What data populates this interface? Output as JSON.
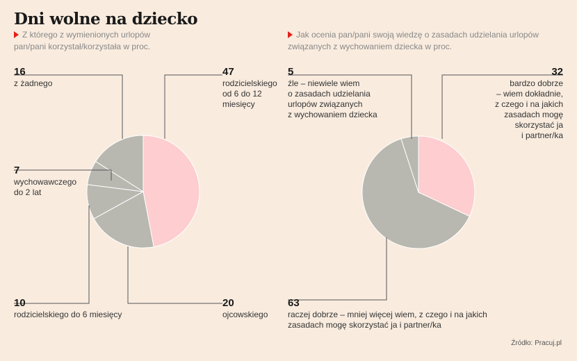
{
  "title": "Dni wolne na dziecko",
  "chart1": {
    "subtitle_l1": "Z którego z wymienionych urlopów",
    "subtitle_l2": "pan/pani korzystał/korzystała w proc.",
    "labels": [
      {
        "value": "16",
        "l1": "z żadnego"
      },
      {
        "value": "47",
        "l1": "rodzicielskiego",
        "l2": "od 6 do 12",
        "l3": "miesięcy"
      },
      {
        "value": "7",
        "l1": "wychowawczego",
        "l2": "do 2 lat"
      },
      {
        "value": "10",
        "l1": "rodzicielskiego do 6 miesięcy"
      },
      {
        "value": "20",
        "l1": "ojcowskiego"
      }
    ]
  },
  "chart2": {
    "subtitle_l1": "Jak ocenia pan/pani swoją wiedzę o zasadach udzielania urlopów",
    "subtitle_l2": "związanych z wychowaniem dziecka w proc.",
    "labels": [
      {
        "value": "5",
        "l1": "źle – niewiele wiem",
        "l2": "o zasadach udzielania",
        "l3": "urlopów związanych",
        "l4": "z wychowaniem dziecka"
      },
      {
        "value": "32",
        "l1": "bardzo dobrze",
        "l2": "– wiem dokładnie,",
        "l3": "z czego i na jakich",
        "l4": "zasadach mogę",
        "l5": "skorzystać ja",
        "l6": "i partner/ka"
      },
      {
        "value": "63",
        "l1": "raczej dobrze – mniej więcej wiem, z czego i na jakich",
        "l2": "zasadach mogę skorzystać ja i partner/ka"
      }
    ]
  },
  "source": "Źródło: Pracuj.pl",
  "chart_data": [
    {
      "type": "pie",
      "title": "Z którego z wymienionych urlopów pan/pani korzystał/korzystała w proc.",
      "start": "12 o'clock, clockwise",
      "slices": [
        {
          "label": "rodzicielskiego od 6 do 12 miesięcy",
          "value": 47,
          "color": "#fdcdcf"
        },
        {
          "label": "ojcowskiego",
          "value": 20,
          "color": "#b8b7b0"
        },
        {
          "label": "rodzicielskiego do 6 miesięcy",
          "value": 10,
          "color": "#b8b7b0"
        },
        {
          "label": "wychowawczego do 2 lat",
          "value": 7,
          "color": "#b8b7b0"
        },
        {
          "label": "z żadnego",
          "value": 16,
          "color": "#b8b7b0"
        }
      ]
    },
    {
      "type": "pie",
      "title": "Jak ocenia pan/pani swoją wiedzę o zasadach udzielania urlopów związanych z wychowaniem dziecka w proc.",
      "start": "12 o'clock, clockwise",
      "slices": [
        {
          "label": "bardzo dobrze – wiem dokładnie, z czego i na jakich zasadach mogę skorzystać ja i partner/ka",
          "value": 32,
          "color": "#fdcdcf"
        },
        {
          "label": "raczej dobrze – mniej więcej wiem, z czego i na jakich zasadach mogę skorzystać ja i partner/ka",
          "value": 63,
          "color": "#b8b7b0"
        },
        {
          "label": "źle – niewiele wiem o zasadach udzielania urlopów związanych z wychowaniem dziecka",
          "value": 5,
          "color": "#b8b7b0"
        }
      ]
    }
  ]
}
